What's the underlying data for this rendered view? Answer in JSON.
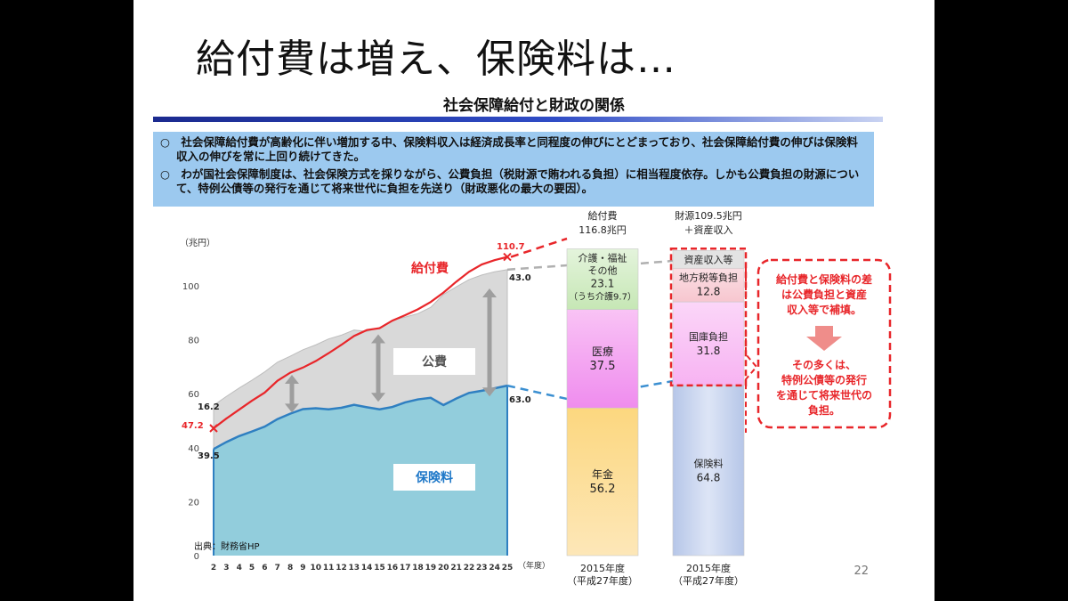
{
  "headline": "給付費は増え、保険料は…",
  "subtitle": "社会保障給付と財政の関係",
  "notes": [
    "○　社会保障給付費が高齢化に伴い増加する中、保険料収入は経済成長率と同程度の伸びにとどまっており、社会保障給付費の伸びは保険料収入の伸びを常に上回り続けてきた。",
    "○　わが国社会保障制度は、社会保険方式を採りながら、公費負担（税財源で賄われる負担）に相当程度依存。しかも公費負担の財源について、特例公債等の発行を通じて将来世代に負担を先送り（財政悪化の最大の要因）。"
  ],
  "page_number": "22",
  "source": "出典：財務省HP",
  "colors": {
    "premium_fill": "#92cddc",
    "premium_line": "#2f7fc1",
    "public_fill": "#d9d9d9",
    "benefit_line": "#e8262a",
    "pension": "#fcd77f",
    "medical": "#ef8cee",
    "nursing": "#c6e7b5",
    "insurance": "#c7d4ee",
    "national_treasury": "#f7b3f2",
    "local_tax": "#f7c6cf",
    "asset": "#e3e3e3"
  },
  "chart_data": [
    {
      "type": "area",
      "ylabel": "（兆円）",
      "xlabel": "（年度）",
      "ylim": [
        0,
        120
      ],
      "yticks": [
        0,
        20,
        40,
        60,
        80,
        100
      ],
      "x": [
        "2",
        "3",
        "4",
        "5",
        "6",
        "7",
        "8",
        "9",
        "10",
        "11",
        "12",
        "13",
        "14",
        "15",
        "16",
        "17",
        "18",
        "19",
        "20",
        "21",
        "22",
        "23",
        "24",
        "25"
      ],
      "series": [
        {
          "name": "給付費",
          "values": [
            47.2,
            50.8,
            54.1,
            57.4,
            60.4,
            64.8,
            67.8,
            69.7,
            72.1,
            75.0,
            78.1,
            81.4,
            83.6,
            84.3,
            87.1,
            89.1,
            91.3,
            94.0,
            97.5,
            101.5,
            105.2,
            107.9,
            109.5,
            110.7
          ]
        },
        {
          "name": "保険料",
          "values": [
            39.5,
            42.1,
            44.3,
            46.0,
            47.8,
            50.6,
            52.6,
            54.3,
            54.6,
            54.2,
            54.8,
            55.9,
            55.0,
            54.2,
            55.1,
            56.8,
            57.9,
            58.5,
            55.8,
            58.2,
            60.3,
            61.1,
            62.0,
            63.0
          ]
        },
        {
          "name": "",
          "values": [
            55.7,
            59.0,
            62.1,
            65.0,
            68.1,
            71.7,
            73.9,
            76.3,
            78.1,
            80.3,
            81.7,
            83.6,
            83.1,
            84.5,
            87.2,
            88.4,
            89.7,
            92.0,
            96.8,
            99.6,
            102.3,
            104.0,
            105.2,
            106.0
          ]
        }
      ],
      "area_labels": [
        "公費",
        "保険料"
      ],
      "annotations": [
        {
          "text": "47.2",
          "x": "2",
          "series": "給付費"
        },
        {
          "text": "16.2",
          "x": "2"
        },
        {
          "text": "39.5",
          "x": "2",
          "series": "保険料"
        },
        {
          "text": "110.7",
          "x": "25",
          "series": "給付費"
        },
        {
          "text": "43.0",
          "x": "25"
        },
        {
          "text": "63.0",
          "x": "25",
          "series": "保険料"
        }
      ]
    },
    {
      "type": "bar",
      "stacked": true,
      "bars": [
        {
          "header": [
            "給付費",
            "116.8兆円"
          ],
          "footer": [
            "2015年度",
            "（平成27年度）"
          ],
          "segments": [
            {
              "label": "年金",
              "value": 56.2
            },
            {
              "label": "医療",
              "value": 37.5
            },
            {
              "label": "介護・福祉その他",
              "value": 23.1,
              "note": "（うち介護9.7）"
            }
          ]
        },
        {
          "header": [
            "財源109.5兆円",
            "＋資産収入"
          ],
          "footer": [
            "2015年度",
            "（平成27年度）"
          ],
          "segments": [
            {
              "label": "保険料",
              "value": 64.8
            },
            {
              "label": "国庫負担",
              "value": 31.8
            },
            {
              "label": "地方税等負担",
              "value": 12.8
            },
            {
              "label": "資産収入等",
              "value": null
            }
          ]
        }
      ]
    }
  ],
  "callout": {
    "top": "給付費と保険料の差は公費負担と資産収入等で補填。",
    "bottom": "その多くは、特例公債等の発行を通じて将来世代の負担。"
  }
}
